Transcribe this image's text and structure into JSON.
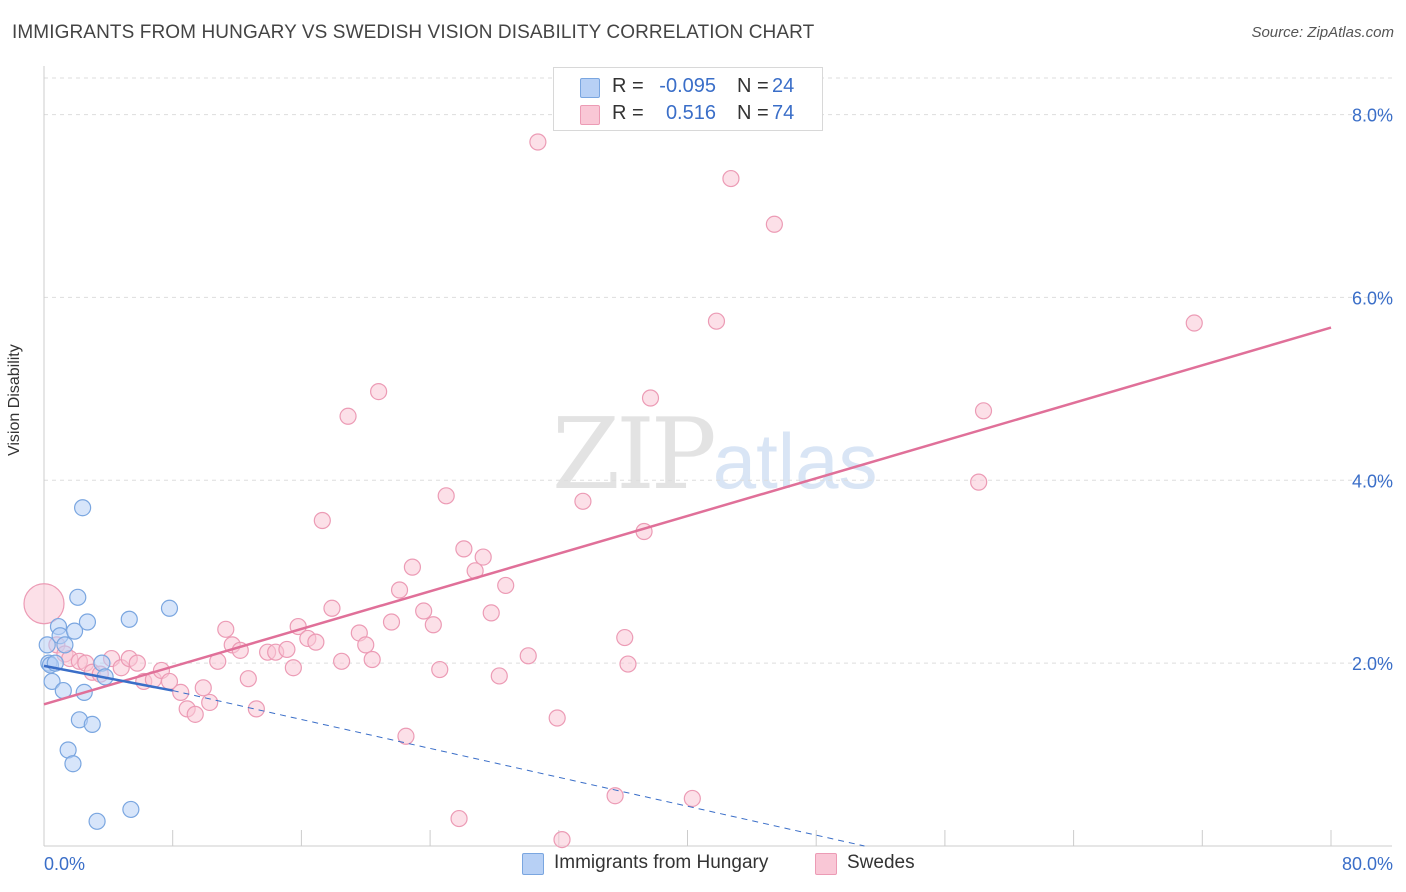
{
  "title": "IMMIGRANTS FROM HUNGARY VS SWEDISH VISION DISABILITY CORRELATION CHART",
  "source": "Source: ZipAtlas.com",
  "watermark": {
    "zip": "ZIP",
    "atlas": "atlas"
  },
  "colors": {
    "blue_fill": "#b7d0f5",
    "blue_stroke": "#7aa6e0",
    "blue_line": "#3a6ec8",
    "pink_fill": "#f9c7d6",
    "pink_stroke": "#ec9bb5",
    "pink_line": "#e07099",
    "grid": "#dddddd",
    "axis_label": "#3a6ec8"
  },
  "legend_top": {
    "rows": [
      {
        "r_label": "R =",
        "r_value": "-0.095",
        "n_label": "N =",
        "n_value": "24",
        "color": "#b7d0f5",
        "name": "hungary"
      },
      {
        "r_label": "R =",
        "r_value": "0.516",
        "n_label": "N =",
        "n_value": "74",
        "color": "#f9c7d6",
        "name": "swedes"
      }
    ]
  },
  "legend_bottom": {
    "items": [
      {
        "label": "Immigrants from Hungary",
        "color": "#b7d0f5"
      },
      {
        "label": "Swedes",
        "color": "#f9c7d6"
      }
    ]
  },
  "chart_data": {
    "type": "scatter",
    "title": "IMMIGRANTS FROM HUNGARY VS SWEDISH VISION DISABILITY CORRELATION CHART",
    "xlabel": "",
    "ylabel": "Vision Disability",
    "xlim": [
      0,
      80
    ],
    "ylim": [
      0,
      8.4
    ],
    "x_tick_labels": [
      "0.0%",
      "80.0%"
    ],
    "y_ticks": [
      2,
      4,
      6,
      8
    ],
    "y_tick_labels": [
      "2.0%",
      "4.0%",
      "6.0%",
      "8.0%"
    ],
    "grid": true,
    "series": [
      {
        "name": "Immigrants from Hungary",
        "r": -0.095,
        "n": 24,
        "trend": {
          "x0": 0,
          "y0": 1.97,
          "x1": 8,
          "y1": 1.7,
          "dashed_to_x": 51,
          "dashed_to_y": 0.0
        },
        "points": [
          [
            0.2,
            2.2
          ],
          [
            0.3,
            2.0
          ],
          [
            0.4,
            1.98
          ],
          [
            0.5,
            1.8
          ],
          [
            0.7,
            2.0
          ],
          [
            0.9,
            2.4
          ],
          [
            1.0,
            2.3
          ],
          [
            1.2,
            1.7
          ],
          [
            1.3,
            2.2
          ],
          [
            1.5,
            1.05
          ],
          [
            1.8,
            0.9
          ],
          [
            1.9,
            2.35
          ],
          [
            2.1,
            2.72
          ],
          [
            2.2,
            1.38
          ],
          [
            2.4,
            3.7
          ],
          [
            2.5,
            1.68
          ],
          [
            2.7,
            2.45
          ],
          [
            3.0,
            1.33
          ],
          [
            3.3,
            0.27
          ],
          [
            3.6,
            2.0
          ],
          [
            3.8,
            1.85
          ],
          [
            5.3,
            2.48
          ],
          [
            5.4,
            0.4
          ],
          [
            7.8,
            2.6
          ]
        ]
      },
      {
        "name": "Swedes",
        "r": 0.516,
        "n": 74,
        "trend": {
          "x0": 0,
          "y0": 1.55,
          "x1": 80,
          "y1": 5.67
        },
        "points": [
          [
            0.0,
            2.65
          ],
          [
            0.8,
            2.2
          ],
          [
            1.3,
            2.1
          ],
          [
            1.6,
            2.05
          ],
          [
            2.2,
            2.02
          ],
          [
            2.6,
            2.0
          ],
          [
            3.0,
            1.9
          ],
          [
            3.5,
            1.88
          ],
          [
            4.2,
            2.05
          ],
          [
            4.8,
            1.95
          ],
          [
            5.3,
            2.05
          ],
          [
            5.8,
            2.0
          ],
          [
            6.2,
            1.8
          ],
          [
            6.8,
            1.82
          ],
          [
            7.3,
            1.92
          ],
          [
            7.8,
            1.8
          ],
          [
            8.5,
            1.68
          ],
          [
            8.9,
            1.5
          ],
          [
            9.4,
            1.44
          ],
          [
            9.9,
            1.73
          ],
          [
            10.3,
            1.57
          ],
          [
            10.8,
            2.02
          ],
          [
            11.3,
            2.37
          ],
          [
            11.7,
            2.2
          ],
          [
            12.2,
            2.14
          ],
          [
            12.7,
            1.83
          ],
          [
            13.2,
            1.5
          ],
          [
            13.9,
            2.12
          ],
          [
            14.4,
            2.12
          ],
          [
            15.1,
            2.15
          ],
          [
            15.5,
            1.95
          ],
          [
            15.8,
            2.4
          ],
          [
            16.4,
            2.27
          ],
          [
            16.9,
            2.23
          ],
          [
            17.3,
            3.56
          ],
          [
            17.9,
            2.6
          ],
          [
            18.5,
            2.02
          ],
          [
            18.9,
            4.7
          ],
          [
            19.6,
            2.33
          ],
          [
            20.0,
            2.2
          ],
          [
            20.4,
            2.04
          ],
          [
            20.8,
            4.97
          ],
          [
            21.6,
            2.45
          ],
          [
            22.1,
            2.8
          ],
          [
            22.5,
            1.2
          ],
          [
            22.9,
            3.05
          ],
          [
            23.6,
            2.57
          ],
          [
            24.2,
            2.42
          ],
          [
            24.6,
            1.93
          ],
          [
            25.0,
            3.83
          ],
          [
            25.8,
            0.3
          ],
          [
            26.1,
            3.25
          ],
          [
            26.8,
            3.01
          ],
          [
            27.3,
            3.16
          ],
          [
            27.8,
            2.55
          ],
          [
            28.3,
            1.86
          ],
          [
            28.7,
            2.85
          ],
          [
            30.1,
            2.08
          ],
          [
            30.7,
            7.7
          ],
          [
            31.9,
            1.4
          ],
          [
            32.2,
            0.07
          ],
          [
            33.5,
            3.77
          ],
          [
            35.5,
            0.55
          ],
          [
            36.1,
            2.28
          ],
          [
            36.3,
            1.99
          ],
          [
            37.3,
            3.44
          ],
          [
            37.7,
            4.9
          ],
          [
            40.3,
            0.52
          ],
          [
            41.8,
            5.74
          ],
          [
            42.7,
            7.3
          ],
          [
            45.4,
            6.8
          ],
          [
            58.1,
            3.98
          ],
          [
            58.4,
            4.76
          ],
          [
            71.5,
            5.72
          ]
        ]
      }
    ]
  }
}
